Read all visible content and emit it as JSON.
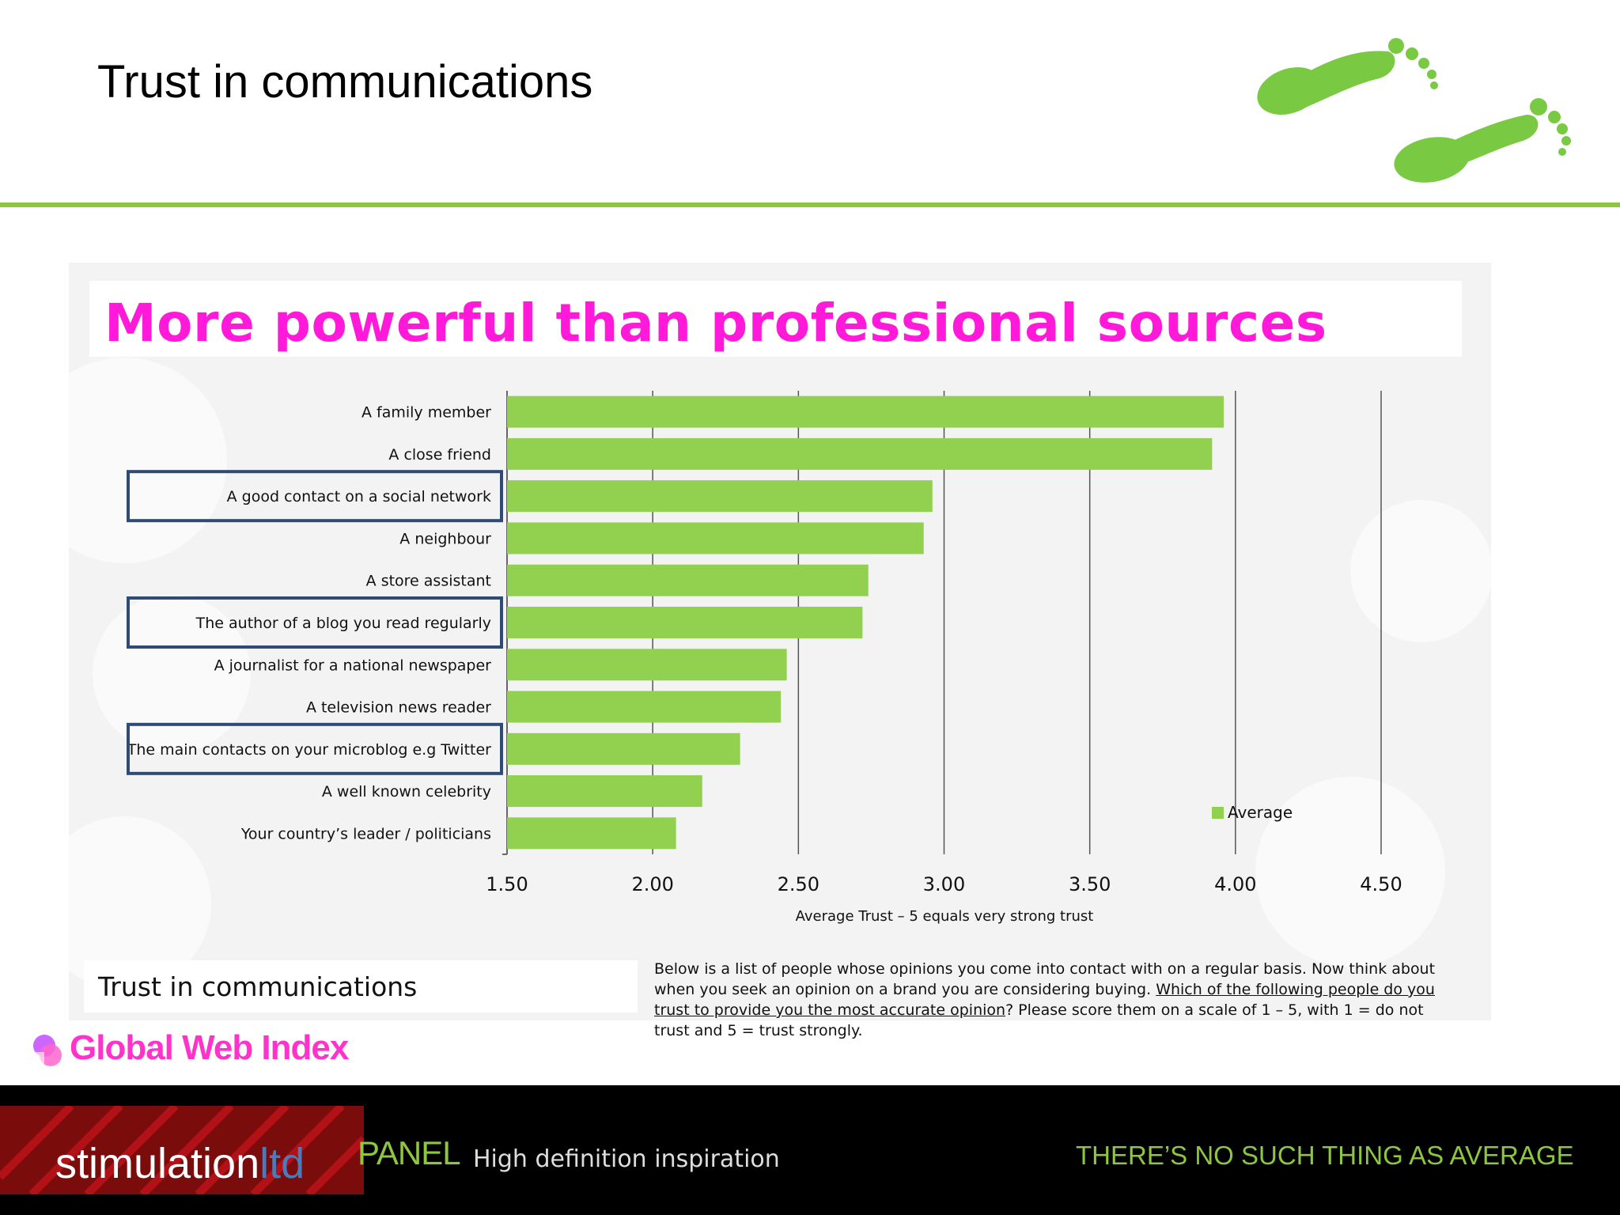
{
  "slide_title": "Trust in communications",
  "headline": "More powerful than professional sources",
  "footer_label": "Trust in communications",
  "question": {
    "part1": "Below is a list of people whose opinions you come into contact with on a regular basis. Now think about when you seek an opinion on a brand you are considering buying. ",
    "underlined": "Which of the following people do you trust to provide you the most accurate opinion",
    "part2": "? Please score them on a scale of 1 – 5, with 1 = do not trust and 5 = trust strongly."
  },
  "logo_text": "Global Web Index",
  "bottom_bar": {
    "brand": "stimulation",
    "brand_suffix": "ltd",
    "panel_word": "PANEL",
    "tagline_left": "High definition inspiration",
    "tagline_right": "THERE’S NO SUCH THING AS AVERAGE"
  },
  "colors": {
    "bar": "#92d050",
    "headline": "#ff1ad9",
    "accent_green": "#8dc63f",
    "highlight_border": "#2f4a73"
  },
  "chart_data": {
    "type": "bar",
    "orientation": "horizontal",
    "categories": [
      "A family member",
      "A close friend",
      "A good contact on a social network",
      "A neighbour",
      "A store assistant",
      "The author of a blog you read regularly",
      "A journalist for a national newspaper",
      "A television news reader",
      "The main contacts on your microblog e.g Twitter",
      "A well known celebrity",
      "Your country’s leader / politicians"
    ],
    "series": [
      {
        "name": "Average",
        "values": [
          3.96,
          3.92,
          2.96,
          2.93,
          2.74,
          2.72,
          2.46,
          2.44,
          2.3,
          2.17,
          2.08
        ]
      }
    ],
    "highlighted": [
      "A good contact on a social network",
      "The author of a blog you read regularly",
      "The main contacts on your microblog e.g Twitter"
    ],
    "xlabel": "Average Trust – 5 equals very strong trust",
    "xlim": [
      1.5,
      4.5
    ],
    "xticks": [
      "1.50",
      "2.00",
      "2.50",
      "3.00",
      "3.50",
      "4.00",
      "4.50"
    ],
    "grid": true,
    "legend_position": "bottom-right"
  }
}
